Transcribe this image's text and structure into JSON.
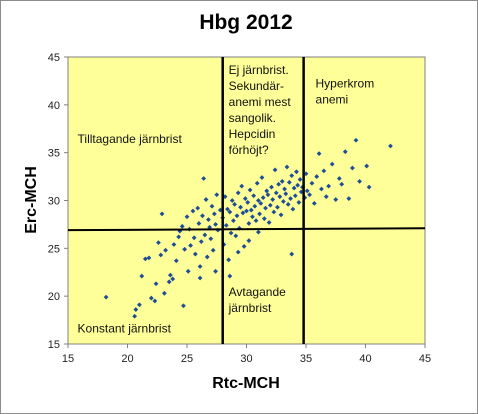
{
  "chart_data": {
    "type": "scatter",
    "title": "Hbg 2012",
    "xlabel": "Rtc-MCH",
    "ylabel": "Erc-MCH",
    "xlim": [
      15,
      45
    ],
    "ylim": [
      15,
      45
    ],
    "x_ticks": [
      "15",
      "20",
      "25",
      "30",
      "35",
      "40",
      "45"
    ],
    "y_ticks": [
      "15",
      "20",
      "25",
      "30",
      "35",
      "40",
      "45"
    ],
    "grid": false,
    "plot_background": "#FFFF99",
    "marker_color": "#1F4E96",
    "divider_color": "#000000",
    "dividers": {
      "vertical_x": [
        28,
        34.8
      ],
      "sloped_line": [
        [
          15,
          26.9
        ],
        [
          45,
          27.1
        ]
      ]
    },
    "annotations": [
      {
        "lines": [
          "Ej järnbrist.",
          "Sekundär-",
          "anemi mest",
          "sangolik.",
          "Hepcidin",
          "förhöjt?"
        ],
        "x": 28.5,
        "y": 43.2
      },
      {
        "lines": [
          "Hyperkrom",
          "anemi"
        ],
        "x": 35.8,
        "y": 41.8
      },
      {
        "lines": [
          "Tilltagande järnbrist"
        ],
        "x": 15.8,
        "y": 36.0
      },
      {
        "lines": [
          "Avtagande",
          "järnbrist"
        ],
        "x": 28.5,
        "y": 20.0
      },
      {
        "lines": [
          "Konstant järnbrist"
        ],
        "x": 15.8,
        "y": 16.2
      }
    ],
    "points": [
      [
        18.2,
        19.9
      ],
      [
        20.6,
        17.9
      ],
      [
        20.7,
        18.6
      ],
      [
        21.0,
        19.1
      ],
      [
        21.2,
        22.1
      ],
      [
        21.5,
        23.9
      ],
      [
        21.8,
        24.0
      ],
      [
        22.0,
        19.8
      ],
      [
        22.3,
        19.5
      ],
      [
        22.4,
        21.3
      ],
      [
        22.6,
        25.6
      ],
      [
        22.8,
        24.3
      ],
      [
        22.9,
        28.6
      ],
      [
        23.1,
        20.3
      ],
      [
        23.2,
        24.8
      ],
      [
        23.5,
        21.5
      ],
      [
        23.6,
        22.2
      ],
      [
        23.8,
        21.8
      ],
      [
        23.9,
        25.4
      ],
      [
        24.1,
        23.7
      ],
      [
        24.3,
        26.2
      ],
      [
        24.4,
        26.8
      ],
      [
        24.6,
        27.3
      ],
      [
        24.8,
        24.9
      ],
      [
        25.0,
        28.3
      ],
      [
        25.1,
        22.6
      ],
      [
        25.2,
        27.0
      ],
      [
        25.3,
        25.3
      ],
      [
        25.5,
        28.9
      ],
      [
        25.6,
        26.1
      ],
      [
        25.7,
        24.4
      ],
      [
        25.9,
        29.2
      ],
      [
        26.0,
        27.6
      ],
      [
        26.1,
        23.1
      ],
      [
        26.2,
        25.7
      ],
      [
        26.3,
        28.4
      ],
      [
        26.4,
        32.3
      ],
      [
        26.5,
        26.4
      ],
      [
        26.6,
        30.1
      ],
      [
        26.7,
        24.1
      ],
      [
        26.8,
        28.0
      ],
      [
        26.9,
        27.2
      ],
      [
        27.0,
        26.0
      ],
      [
        27.1,
        29.4
      ],
      [
        27.2,
        24.8
      ],
      [
        27.3,
        28.6
      ],
      [
        27.4,
        27.5
      ],
      [
        27.5,
        30.6
      ],
      [
        27.6,
        26.9
      ],
      [
        27.8,
        29.0
      ],
      [
        28.0,
        28.2
      ],
      [
        28.1,
        25.4
      ],
      [
        28.2,
        30.4
      ],
      [
        28.3,
        27.4
      ],
      [
        28.4,
        29.1
      ],
      [
        28.5,
        23.8
      ],
      [
        28.6,
        28.8
      ],
      [
        28.7,
        26.6
      ],
      [
        28.8,
        30.0
      ],
      [
        28.9,
        27.9
      ],
      [
        29.0,
        29.6
      ],
      [
        29.1,
        26.3
      ],
      [
        29.2,
        28.4
      ],
      [
        29.3,
        30.8
      ],
      [
        29.4,
        27.1
      ],
      [
        29.5,
        29.3
      ],
      [
        29.6,
        31.5
      ],
      [
        29.7,
        28.7
      ],
      [
        29.8,
        25.2
      ],
      [
        29.9,
        30.2
      ],
      [
        30.0,
        28.9
      ],
      [
        30.1,
        29.8
      ],
      [
        30.2,
        27.6
      ],
      [
        30.3,
        31.1
      ],
      [
        30.4,
        29.0
      ],
      [
        30.5,
        28.3
      ],
      [
        30.6,
        30.5
      ],
      [
        30.7,
        29.4
      ],
      [
        30.8,
        27.9
      ],
      [
        30.9,
        31.8
      ],
      [
        31.0,
        30.0
      ],
      [
        31.1,
        28.6
      ],
      [
        31.2,
        29.7
      ],
      [
        31.3,
        32.4
      ],
      [
        31.4,
        30.3
      ],
      [
        31.5,
        28.1
      ],
      [
        31.6,
        29.2
      ],
      [
        31.7,
        31.0
      ],
      [
        31.8,
        30.6
      ],
      [
        31.9,
        27.7
      ],
      [
        32.0,
        29.5
      ],
      [
        32.1,
        31.4
      ],
      [
        32.2,
        30.1
      ],
      [
        32.3,
        28.8
      ],
      [
        32.4,
        33.2
      ],
      [
        32.5,
        30.8
      ],
      [
        32.6,
        29.3
      ],
      [
        32.7,
        31.7
      ],
      [
        32.8,
        30.4
      ],
      [
        32.9,
        28.5
      ],
      [
        33.0,
        32.0
      ],
      [
        33.1,
        29.9
      ],
      [
        33.2,
        31.2
      ],
      [
        33.3,
        30.7
      ],
      [
        33.4,
        33.5
      ],
      [
        33.5,
        29.6
      ],
      [
        33.6,
        31.9
      ],
      [
        33.7,
        30.2
      ],
      [
        33.8,
        32.6
      ],
      [
        33.9,
        29.1
      ],
      [
        34.0,
        31.3
      ],
      [
        34.1,
        30.5
      ],
      [
        34.2,
        33.0
      ],
      [
        34.3,
        31.6
      ],
      [
        34.4,
        29.8
      ],
      [
        34.5,
        32.2
      ],
      [
        34.6,
        30.9
      ],
      [
        34.7,
        31.4
      ],
      [
        34.9,
        30.3
      ],
      [
        35.0,
        32.8
      ],
      [
        35.1,
        31.0
      ],
      [
        35.3,
        30.6
      ],
      [
        35.5,
        31.8
      ],
      [
        35.7,
        29.7
      ],
      [
        35.9,
        32.5
      ],
      [
        36.1,
        34.9
      ],
      [
        36.3,
        31.2
      ],
      [
        36.5,
        33.1
      ],
      [
        36.7,
        30.4
      ],
      [
        36.9,
        31.5
      ],
      [
        37.2,
        33.8
      ],
      [
        37.5,
        30.1
      ],
      [
        37.8,
        32.3
      ],
      [
        38.0,
        31.7
      ],
      [
        38.3,
        35.1
      ],
      [
        38.6,
        30.2
      ],
      [
        38.9,
        33.4
      ],
      [
        39.2,
        36.3
      ],
      [
        39.5,
        32.0
      ],
      [
        40.1,
        33.6
      ],
      [
        40.3,
        31.4
      ],
      [
        42.1,
        35.7
      ],
      [
        27.4,
        22.6
      ],
      [
        28.6,
        22.1
      ],
      [
        29.3,
        24.6
      ],
      [
        30.2,
        25.8
      ],
      [
        31.0,
        26.7
      ],
      [
        33.8,
        24.4
      ],
      [
        24.7,
        19.0
      ],
      [
        26.1,
        21.9
      ]
    ]
  }
}
